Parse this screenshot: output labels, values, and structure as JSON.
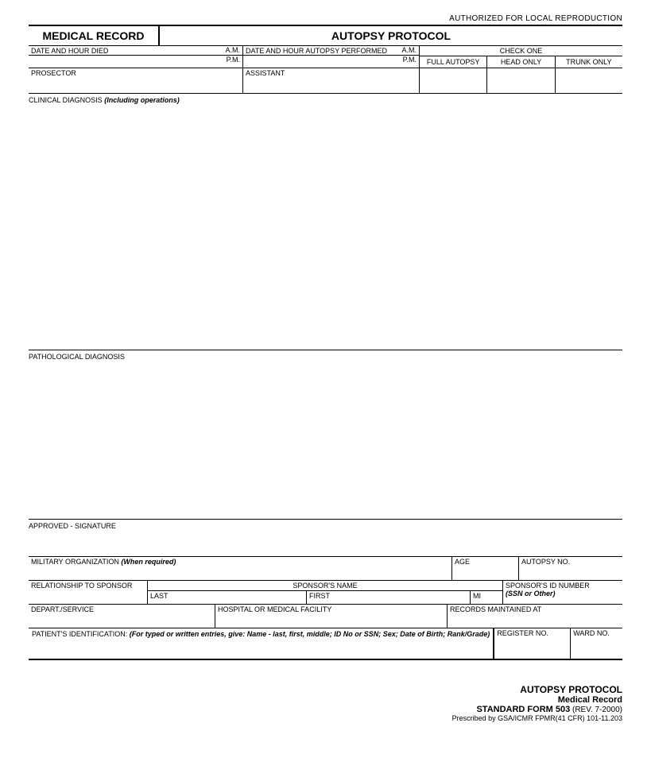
{
  "authorization": "AUTHORIZED FOR LOCAL REPRODUCTION",
  "header": {
    "left": "MEDICAL RECORD",
    "right": "AUTOPSY PROTOCOL"
  },
  "row1": {
    "date_died_label": "DATE AND HOUR DIED",
    "date_perf_label": "DATE AND HOUR AUTOPSY PERFORMED",
    "am": "A.M.",
    "pm": "P.M.",
    "check_one": "CHECK ONE",
    "full_autopsy": "FULL AUTOPSY",
    "head_only": "HEAD ONLY",
    "trunk_only": "TRUNK ONLY"
  },
  "row2": {
    "prosector": "PROSECTOR",
    "assistant": "ASSISTANT"
  },
  "clinical": {
    "label": "CLINICAL DIAGNOSIS ",
    "italic": "(Including operations)"
  },
  "pathological": "PATHOLOGICAL DIAGNOSIS",
  "approved": "APPROVED - SIGNATURE",
  "mil": {
    "org": "MILITARY ORGANIZATION ",
    "org_italic": "(When required)",
    "age": "AGE",
    "autno": "AUTOPSY NO."
  },
  "rel": {
    "label": "RELATIONSHIP TO SPONSOR",
    "sponsor_name": "SPONSOR'S NAME",
    "last": "LAST",
    "first": "FIRST",
    "mi": "MI",
    "id": "SPONSOR'S ID NUMBER",
    "id_italic": "(SSN or Other)"
  },
  "dep": {
    "depart": "DEPART./SERVICE",
    "hosp": "HOSPITAL OR MEDICAL FACILITY",
    "recm": "RECORDS MAINTAINED AT"
  },
  "pat": {
    "label": "PATIENT'S IDENTIFICATION:  ",
    "italic": "(For typed or written entries, give:  Name - last, first, middle; ID No or SSN; Sex; Date of Birth; Rank/Grade)",
    "reg": "REGISTER NO.",
    "ward": "WARD NO."
  },
  "footer": {
    "t1": "AUTOPSY PROTOCOL",
    "t2": "Medical Record",
    "t3a": "STANDARD FORM 503",
    "t3b": " (REV. 7-2000)",
    "t4": "Prescribed by GSA/ICMR FPMR(41 CFR) 101-11.203"
  }
}
